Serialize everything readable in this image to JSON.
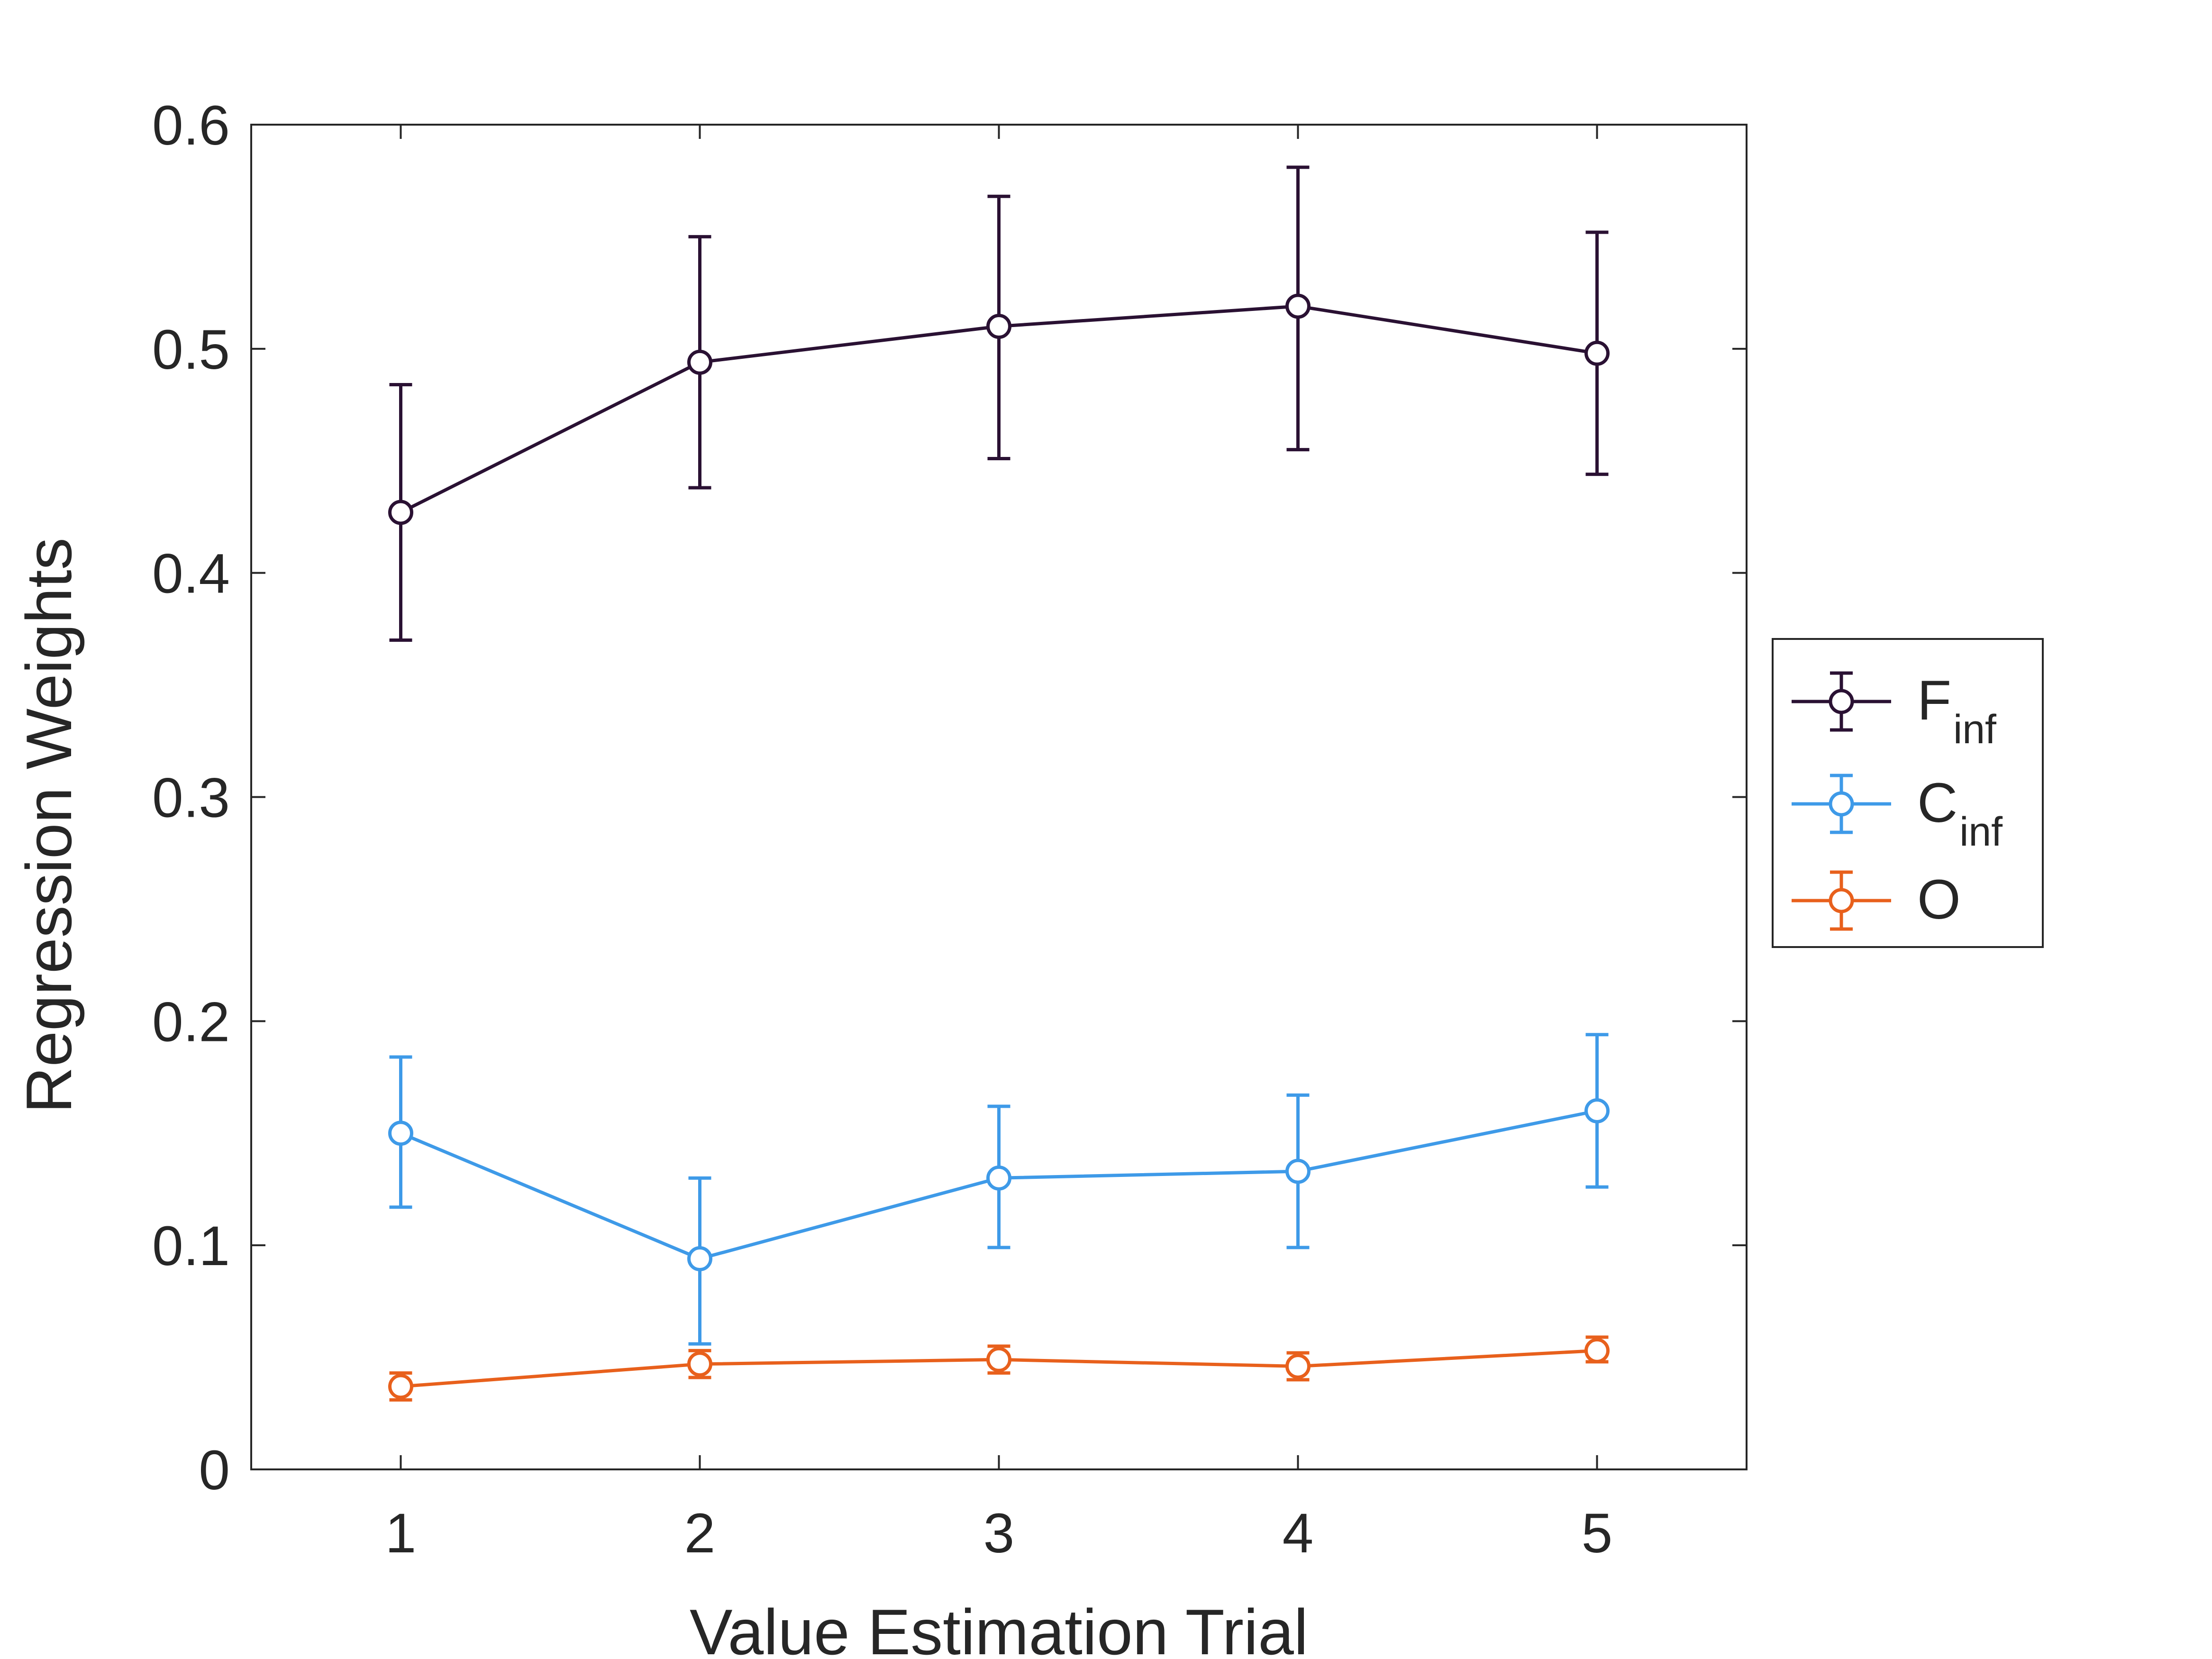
{
  "chart_data": {
    "type": "line",
    "xlabel": "Value Estimation Trial",
    "ylabel": "Regression Weights",
    "x": [
      1,
      2,
      3,
      4,
      5
    ],
    "xlim": [
      0.5,
      5.5
    ],
    "ylim": [
      0,
      0.6
    ],
    "xticks": [
      "1",
      "2",
      "3",
      "4",
      "5"
    ],
    "yticks": [
      "0",
      "0.1",
      "0.2",
      "0.3",
      "0.4",
      "0.5",
      "0.6"
    ],
    "grid": false,
    "legend_position": "outside-right",
    "series": [
      {
        "name": "F",
        "subscript": "inf",
        "color": "#2a1133",
        "values": [
          0.427,
          0.494,
          0.51,
          0.519,
          0.498
        ],
        "err_low": [
          0.37,
          0.438,
          0.451,
          0.455,
          0.444
        ],
        "err_high": [
          0.484,
          0.55,
          0.568,
          0.581,
          0.552
        ]
      },
      {
        "name": "C",
        "subscript": "inf",
        "color": "#3e9ae8",
        "values": [
          0.15,
          0.094,
          0.13,
          0.133,
          0.16
        ],
        "err_low": [
          0.117,
          0.056,
          0.099,
          0.099,
          0.126
        ],
        "err_high": [
          0.184,
          0.13,
          0.162,
          0.167,
          0.194
        ]
      },
      {
        "name": "O",
        "subscript": "",
        "color": "#e8601c",
        "values": [
          0.037,
          0.047,
          0.049,
          0.046,
          0.053
        ],
        "err_low": [
          0.031,
          0.041,
          0.043,
          0.04,
          0.048
        ],
        "err_high": [
          0.043,
          0.053,
          0.055,
          0.052,
          0.059
        ]
      }
    ]
  }
}
